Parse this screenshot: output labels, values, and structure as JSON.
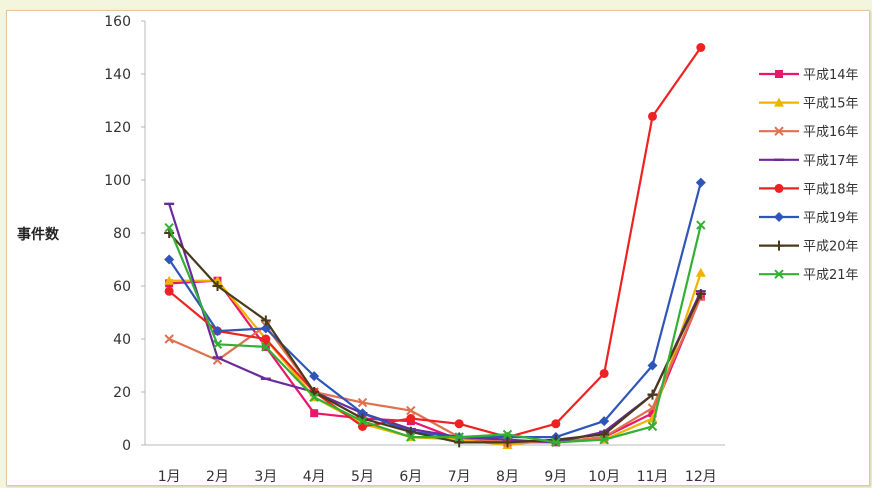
{
  "chart_data": {
    "type": "line",
    "ylabel": "事件数",
    "xlabel": "",
    "ylim": [
      0,
      160
    ],
    "yticks": [
      "0",
      "20",
      "40",
      "60",
      "80",
      "100",
      "120",
      "140",
      "160"
    ],
    "categories": [
      "1月",
      "2月",
      "3月",
      "4月",
      "5月",
      "6月",
      "7月",
      "8月",
      "9月",
      "10月",
      "11月",
      "12月"
    ],
    "legend_position": "right",
    "grid": false,
    "series": [
      {
        "name": "平成14年",
        "color": "#e8176b",
        "marker": "square",
        "values": [
          61,
          62,
          37,
          12,
          10,
          9,
          2,
          1,
          1,
          3,
          12,
          56
        ]
      },
      {
        "name": "平成15年",
        "color": "#f0b400",
        "marker": "triangle",
        "values": [
          62,
          62,
          40,
          18,
          8,
          3,
          2,
          0,
          2,
          2,
          10,
          65
        ]
      },
      {
        "name": "平成16年",
        "color": "#e07050",
        "marker": "x",
        "values": [
          40,
          32,
          45,
          20,
          16,
          13,
          3,
          1,
          1,
          3,
          14,
          56
        ]
      },
      {
        "name": "平成17年",
        "color": "#6a2a9a",
        "marker": "dash",
        "values": [
          91,
          33,
          25,
          20,
          12,
          6,
          3,
          2,
          1,
          5,
          19,
          58
        ]
      },
      {
        "name": "平成18年",
        "color": "#ee2222",
        "marker": "circle",
        "values": [
          58,
          43,
          40,
          20,
          7,
          10,
          8,
          3,
          8,
          27,
          124,
          150
        ]
      },
      {
        "name": "平成19年",
        "color": "#2f55b8",
        "marker": "diamond",
        "values": [
          70,
          43,
          44,
          26,
          12,
          5,
          3,
          3,
          3,
          9,
          30,
          99
        ]
      },
      {
        "name": "平成20年",
        "color": "#4a3a1a",
        "marker": "plus",
        "values": [
          80,
          60,
          47,
          20,
          10,
          5,
          1,
          1,
          2,
          4,
          19,
          57
        ]
      },
      {
        "name": "平成21年",
        "color": "#33b033",
        "marker": "x",
        "values": [
          82,
          38,
          37,
          18,
          9,
          3,
          3,
          4,
          1,
          2,
          7,
          83
        ]
      }
    ]
  }
}
